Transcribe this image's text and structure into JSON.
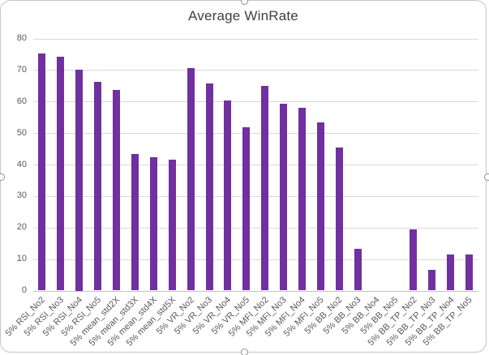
{
  "chart": {
    "title": "Average WinRate"
  },
  "chart_data": {
    "type": "bar",
    "title": "Average WinRate",
    "categories": [
      "5% RSI_No2",
      "5% RSI_No3",
      "5% RSI_No4",
      "5% RSI_No5",
      "5% mean_std2X",
      "5% mean_std3X",
      "5% mean_std4X",
      "5% mean_std5X",
      "5% VR_No2",
      "5% VR_No3",
      "5% VR_No4",
      "5% VR_No5",
      "5% MFI_No2",
      "5% MFI_No3",
      "5% MFI_No4",
      "5% MFI_No5",
      "5% BB_No2",
      "5% BB_No3",
      "5% BB_No4",
      "5% BB_No5",
      "5% BB_TP_No2",
      "5% BB_TP_No3",
      "5% BB_TP_No4",
      "5% BB_TP_No5"
    ],
    "values": [
      75.2,
      74.1,
      70.0,
      66.3,
      63.7,
      43.3,
      42.2,
      41.5,
      70.5,
      65.6,
      60.2,
      51.8,
      64.9,
      59.2,
      58.0,
      53.4,
      45.3,
      13.2,
      0,
      0,
      19.4,
      6.5,
      11.4,
      11.4
    ],
    "xlabel": "",
    "ylabel": "",
    "ylim": [
      0,
      80
    ],
    "y_ticks": [
      0,
      10,
      20,
      30,
      40,
      50,
      60,
      70,
      80
    ],
    "grid": true,
    "legend": false,
    "x_tick_rotation_deg": 45,
    "bar_color": "#7030A0",
    "gridline_color": "#d9d9d9",
    "axis_line_color": "#c3c3c3",
    "tick_label_color": "#595959",
    "title_color": "#404040"
  }
}
